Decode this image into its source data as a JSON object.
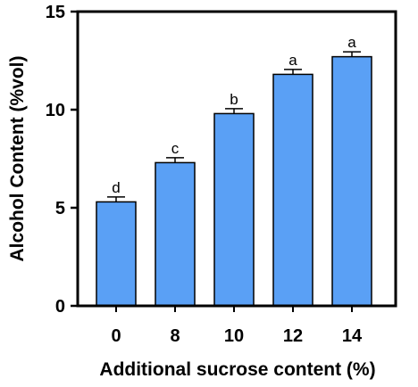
{
  "chart_data": {
    "type": "bar",
    "categories": [
      "0",
      "8",
      "10",
      "12",
      "14"
    ],
    "values": [
      5.3,
      7.3,
      9.8,
      11.8,
      12.7
    ],
    "errors": [
      0.25,
      0.25,
      0.25,
      0.25,
      0.25
    ],
    "significance": [
      "d",
      "c",
      "b",
      "a",
      "a"
    ],
    "xlabel": "Additional sucrose content (%)",
    "ylabel": "Alcohol Content (%vol)",
    "ylim": [
      0,
      15
    ],
    "yticks": [
      0,
      5,
      10,
      15
    ],
    "grid": false,
    "bar_color": "#5aa0f5",
    "bar_edge_color": "#000000"
  }
}
